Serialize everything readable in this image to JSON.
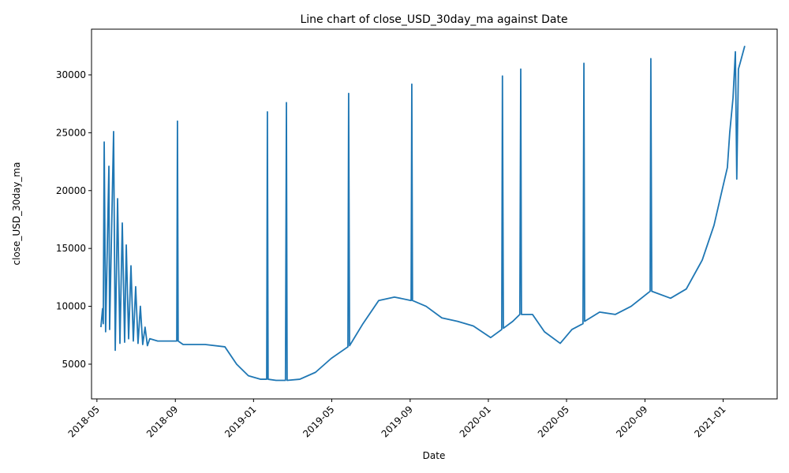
{
  "chart_data": {
    "type": "line",
    "title": "Line chart of close_USD_30day_ma against Date",
    "x_label": "Date",
    "y_label": "close_USD_30day_ma",
    "x": [
      2018.35,
      2018.357,
      2018.36,
      2018.364,
      2018.37,
      2018.384,
      2018.387,
      2018.404,
      2018.411,
      2018.421,
      2018.431,
      2018.441,
      2018.451,
      2018.458,
      2018.468,
      2018.478,
      2018.488,
      2018.498,
      2018.508,
      2018.518,
      2018.528,
      2018.538,
      2018.548,
      2018.558,
      2018.592,
      2018.642,
      2018.673,
      2018.676,
      2018.679,
      2018.7,
      2018.794,
      2018.878,
      2018.928,
      2018.978,
      2019.029,
      2019.056,
      2019.059,
      2019.062,
      2019.096,
      2019.136,
      2019.14,
      2019.143,
      2019.197,
      2019.264,
      2019.331,
      2019.402,
      2019.405,
      2019.409,
      2019.466,
      2019.533,
      2019.6,
      2019.671,
      2019.674,
      2019.677,
      2019.735,
      2019.802,
      2019.869,
      2019.936,
      2020.01,
      2020.057,
      2020.06,
      2020.064,
      2020.104,
      2020.134,
      2020.138,
      2020.141,
      2020.188,
      2020.239,
      2020.306,
      2020.356,
      2020.403,
      2020.407,
      2020.41,
      2020.474,
      2020.541,
      2020.608,
      2020.689,
      2020.692,
      2020.696,
      2020.776,
      2020.843,
      2020.911,
      2020.961,
      2020.995,
      2021.018,
      2021.028,
      2021.042,
      2021.052,
      2021.058,
      2021.065,
      2021.072,
      2021.092
    ],
    "series": [
      {
        "name": "close_USD_30day_ma",
        "color": "#1f77b4",
        "values": [
          8200,
          9800,
          8500,
          24200,
          7800,
          22100,
          8000,
          25100,
          6200,
          19300,
          6800,
          17200,
          6900,
          15300,
          7200,
          13500,
          7000,
          11700,
          6800,
          10000,
          6700,
          8200,
          6600,
          7200,
          7000,
          7000,
          7000,
          26000,
          7000,
          6700,
          6700,
          6500,
          5000,
          4000,
          3700,
          3700,
          26800,
          3700,
          3600,
          3600,
          27600,
          3600,
          3700,
          4300,
          5500,
          6500,
          28400,
          6600,
          8500,
          10500,
          10800,
          10500,
          29200,
          10500,
          10000,
          9000,
          8700,
          8300,
          7300,
          8000,
          29900,
          8100,
          8700,
          9300,
          30500,
          9300,
          9300,
          7800,
          6800,
          8000,
          8500,
          31000,
          8700,
          9500,
          9300,
          10000,
          11300,
          31400,
          11300,
          10700,
          11500,
          14000,
          17000,
          20000,
          22000,
          25000,
          28000,
          32000,
          21000,
          30500,
          31000,
          32500
        ]
      }
    ],
    "xlim": [
      2018.31,
      2021.23
    ],
    "ylim": [
      2000,
      33950
    ],
    "xticks": [
      {
        "value": 2018.333,
        "label": "2018-05"
      },
      {
        "value": 2018.667,
        "label": "2018-09"
      },
      {
        "value": 2019.0,
        "label": "2019-01"
      },
      {
        "value": 2019.333,
        "label": "2019-05"
      },
      {
        "value": 2019.667,
        "label": "2019-09"
      },
      {
        "value": 2020.0,
        "label": "2020-01"
      },
      {
        "value": 2020.333,
        "label": "2020-05"
      },
      {
        "value": 2020.667,
        "label": "2020-09"
      },
      {
        "value": 2021.0,
        "label": "2021-01"
      }
    ],
    "yticks": [
      5000,
      10000,
      15000,
      20000,
      25000,
      30000
    ],
    "grid": false
  }
}
